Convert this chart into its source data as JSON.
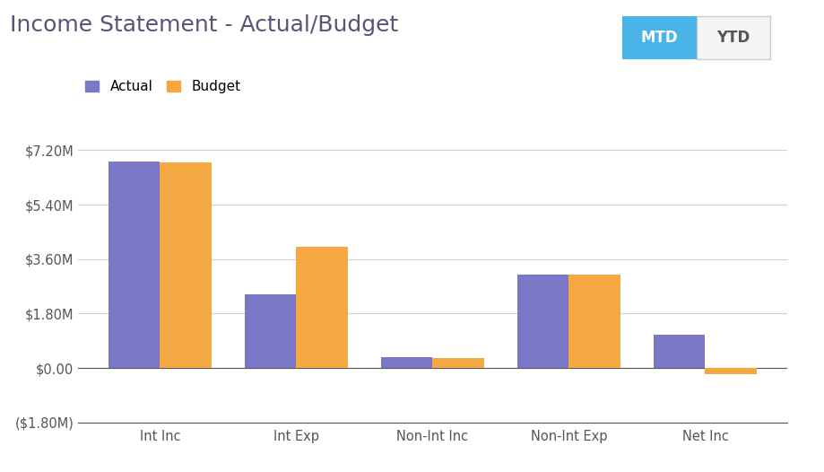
{
  "title": "Income Statement - Actual/Budget",
  "categories": [
    "Int Inc",
    "Int Exp",
    "Non-Int Inc",
    "Non-Int Exp",
    "Net Inc"
  ],
  "actual_values": [
    6.82,
    2.42,
    0.35,
    3.1,
    1.1
  ],
  "budget_values": [
    6.8,
    4.02,
    0.34,
    3.1,
    -0.2
  ],
  "actual_color": "#7b78c8",
  "budget_color": "#f5a742",
  "ylim": [
    -1.8,
    7.56
  ],
  "yticks": [
    -1.8,
    0.0,
    1.8,
    3.6,
    5.4,
    7.2
  ],
  "ytick_labels": [
    "($1.80M)",
    "$0.00",
    "$1.80M",
    "$3.60M",
    "$5.40M",
    "$7.20M"
  ],
  "legend_labels": [
    "Actual",
    "Budget"
  ],
  "background_color": "#ffffff",
  "grid_color": "#d0d0d0",
  "title_fontsize": 18,
  "tick_fontsize": 10.5,
  "legend_fontsize": 11,
  "bar_width": 0.38,
  "mtd_button_color": "#4ab3e8",
  "mtd_button_text": "MTD",
  "ytd_button_text": "YTD",
  "axis_line_color": "#555555",
  "title_color": "#555577"
}
